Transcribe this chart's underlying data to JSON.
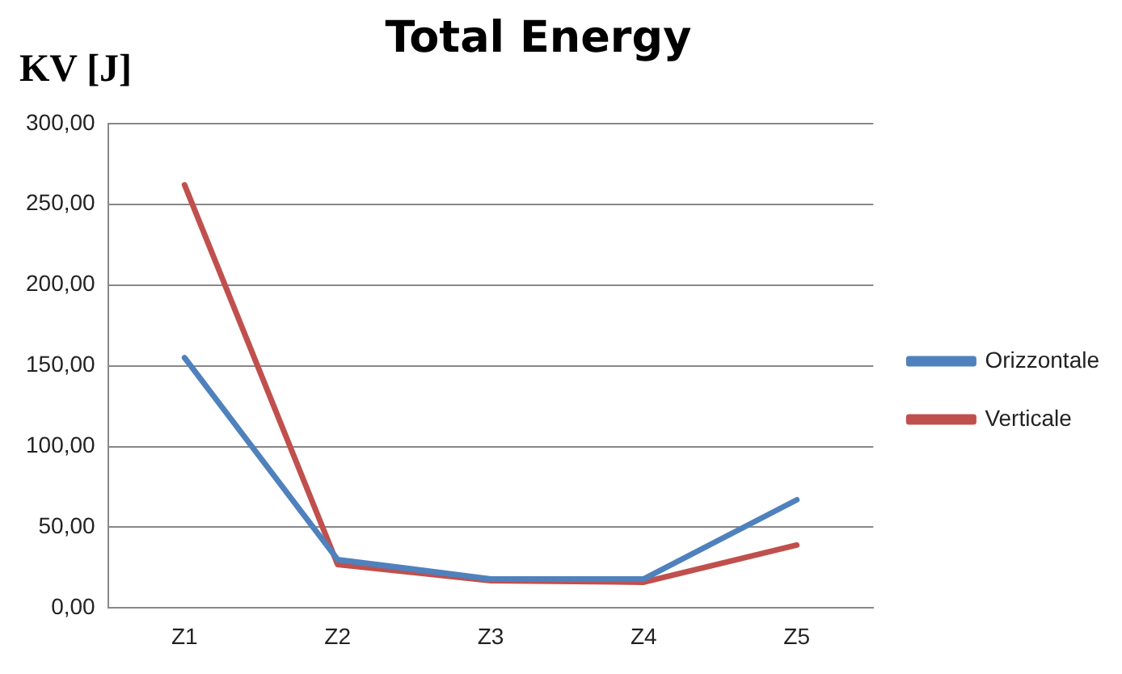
{
  "chart_data": {
    "type": "line",
    "title": "Total Energy",
    "ylabel": "KV [J]",
    "categories": [
      "Z1",
      "Z2",
      "Z3",
      "Z4",
      "Z5"
    ],
    "series": [
      {
        "name": "Orizzontale",
        "color": "#4f81bd",
        "values": [
          155,
          30,
          18,
          18,
          67
        ]
      },
      {
        "name": "Verticale",
        "color": "#c0504d",
        "values": [
          262,
          27,
          17,
          16,
          39
        ]
      }
    ],
    "ylim": [
      0,
      300
    ],
    "yticks": [
      {
        "value": 0,
        "label": "0,00"
      },
      {
        "value": 50,
        "label": "50,00"
      },
      {
        "value": 100,
        "label": "100,00"
      },
      {
        "value": 150,
        "label": "150,00"
      },
      {
        "value": 200,
        "label": "200,00"
      },
      {
        "value": 250,
        "label": "250,00"
      },
      {
        "value": 300,
        "label": "300,00"
      }
    ],
    "grid": "y",
    "legend": "right",
    "marker": "none",
    "line_style": "solid"
  }
}
